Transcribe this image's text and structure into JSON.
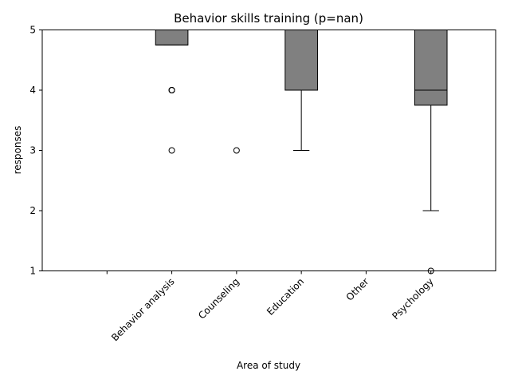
{
  "chart_data": {
    "type": "box",
    "title": "Behavior skills training (p=nan)",
    "xlabel": "Area of study",
    "ylabel": "responses",
    "ylim": [
      1,
      5
    ],
    "yticks": [
      1,
      2,
      3,
      4,
      5
    ],
    "categories": [
      "",
      "Behavior analysis",
      "Counseling",
      "Education",
      "Other",
      "Psychology"
    ],
    "grid": false,
    "box_color": "#808080",
    "edge_color": "#000000",
    "boxes": [
      null,
      {
        "q1": 4.75,
        "median": 4.75,
        "q3": 5,
        "whisker_low": 4.75,
        "whisker_high": 5,
        "outliers": [
          4,
          4,
          4,
          3
        ]
      },
      {
        "q1": 5,
        "median": 5,
        "q3": 5,
        "whisker_low": 5,
        "whisker_high": 5,
        "outliers": [
          3
        ]
      },
      {
        "q1": 4,
        "median": 4,
        "q3": 5,
        "whisker_low": 3,
        "whisker_high": 5,
        "outliers": []
      },
      {
        "q1": 5,
        "median": 5,
        "q3": 5,
        "whisker_low": 5,
        "whisker_high": 5,
        "outliers": []
      },
      {
        "q1": 3.75,
        "median": 4,
        "q3": 5,
        "whisker_low": 2,
        "whisker_high": 5,
        "outliers": [
          1
        ]
      }
    ]
  }
}
